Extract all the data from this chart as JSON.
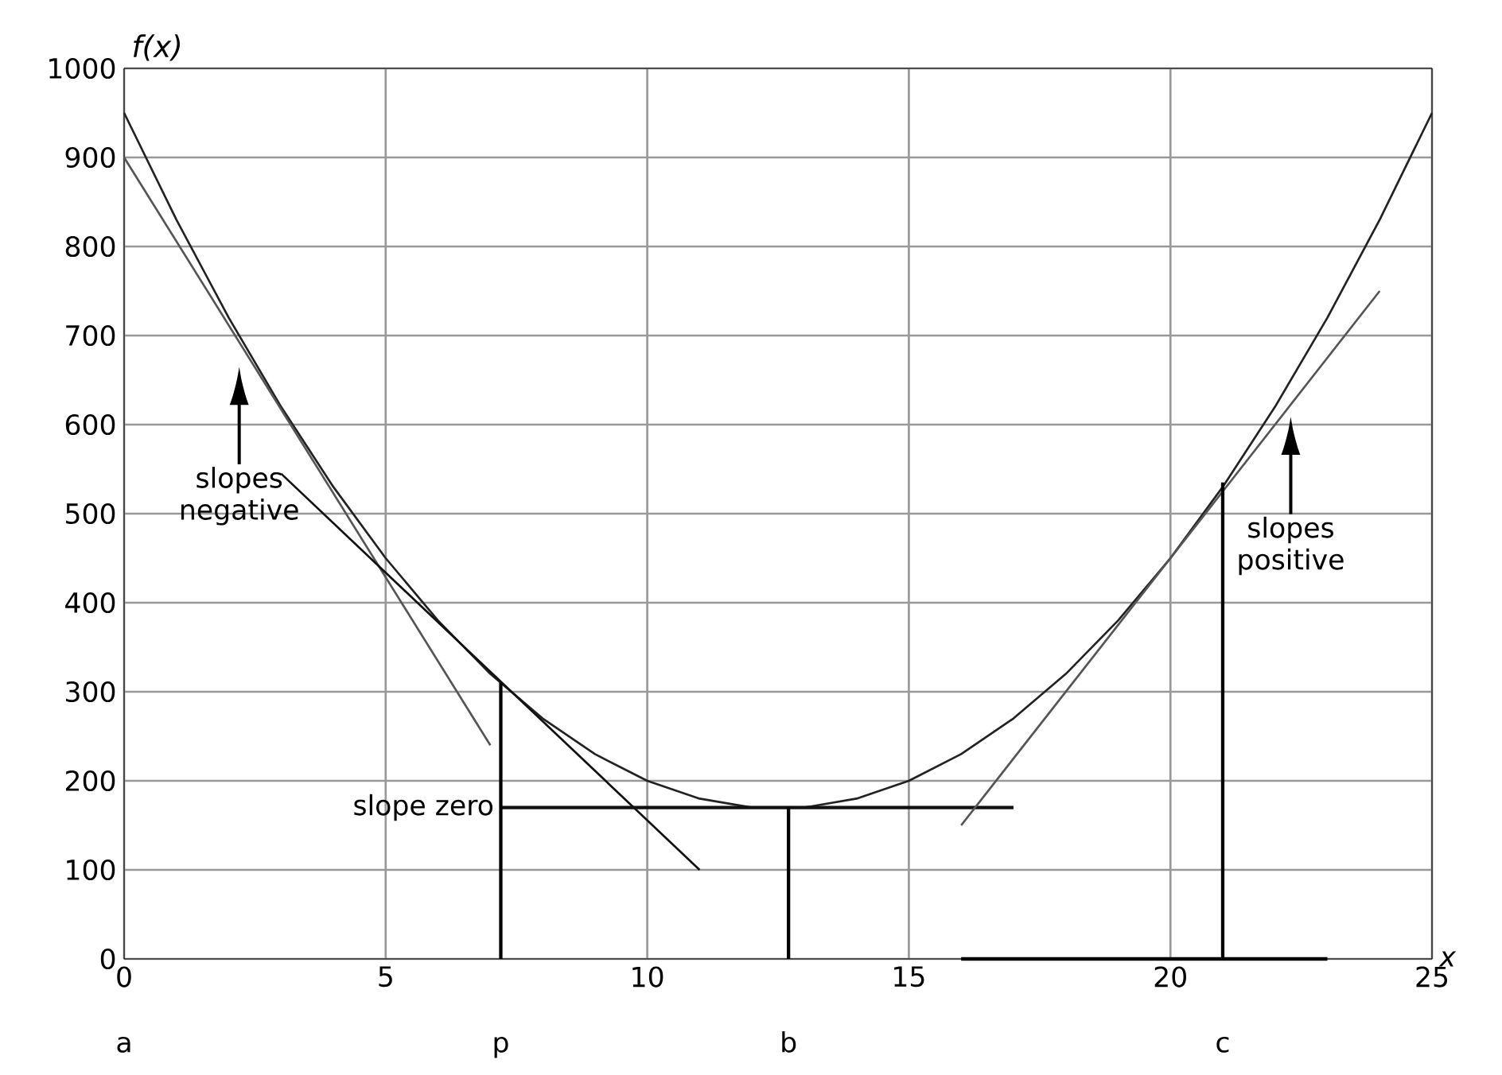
{
  "chart_data": {
    "type": "line",
    "xlabel": "x",
    "ylabel": "f(x)",
    "xlim": [
      0,
      25
    ],
    "ylim": [
      0,
      1000
    ],
    "xticks": [
      0,
      5,
      10,
      15,
      20,
      25
    ],
    "yticks": [
      0,
      100,
      200,
      300,
      400,
      500,
      600,
      700,
      800,
      900,
      1000
    ],
    "grid": true,
    "marker": "none",
    "line_style": "solid",
    "series": [
      {
        "color": "#222222",
        "x": [
          0,
          1,
          2,
          3,
          4,
          5,
          6,
          7,
          8,
          9,
          10,
          11,
          12,
          13,
          14,
          15,
          16,
          17,
          18,
          19,
          20,
          21,
          22,
          23,
          24,
          25
        ],
        "values": [
          950,
          830,
          720,
          620,
          530,
          450,
          380,
          320,
          270,
          230,
          200,
          180,
          170,
          170,
          180,
          200,
          230,
          270,
          320,
          380,
          450,
          530,
          620,
          720,
          830,
          950
        ]
      },
      {
        "color": "#555555",
        "x": [
          0,
          7
        ],
        "values": [
          900,
          240
        ]
      },
      {
        "color": "#111111",
        "x": [
          3,
          11
        ],
        "values": [
          545,
          100
        ]
      },
      {
        "color": "#111111",
        "x": [
          7.2,
          17
        ],
        "values": [
          170,
          170
        ]
      },
      {
        "color": "#555555",
        "x": [
          16,
          24
        ],
        "values": [
          150,
          750
        ]
      },
      {
        "color": "#000000",
        "x": [
          7.2,
          7.2
        ],
        "values": [
          0,
          310
        ]
      },
      {
        "color": "#000000",
        "x": [
          12.7,
          12.7
        ],
        "values": [
          0,
          170
        ]
      },
      {
        "color": "#000000",
        "x": [
          21,
          21
        ],
        "values": [
          0,
          535
        ]
      },
      {
        "color": "#000000",
        "x": [
          16,
          23
        ],
        "values": [
          0,
          0
        ]
      }
    ],
    "annotations": [
      "a",
      {
        "text": "p",
        "x": 7.2,
        "y": 0
      },
      {
        "text": "b",
        "x": 12.7,
        "y": 0
      },
      {
        "text": "c",
        "x": 21,
        "y": 0
      },
      {
        "text": "slope zero",
        "x": 7.2,
        "y": 170
      },
      "slopes negative",
      "slopes positive"
    ]
  }
}
